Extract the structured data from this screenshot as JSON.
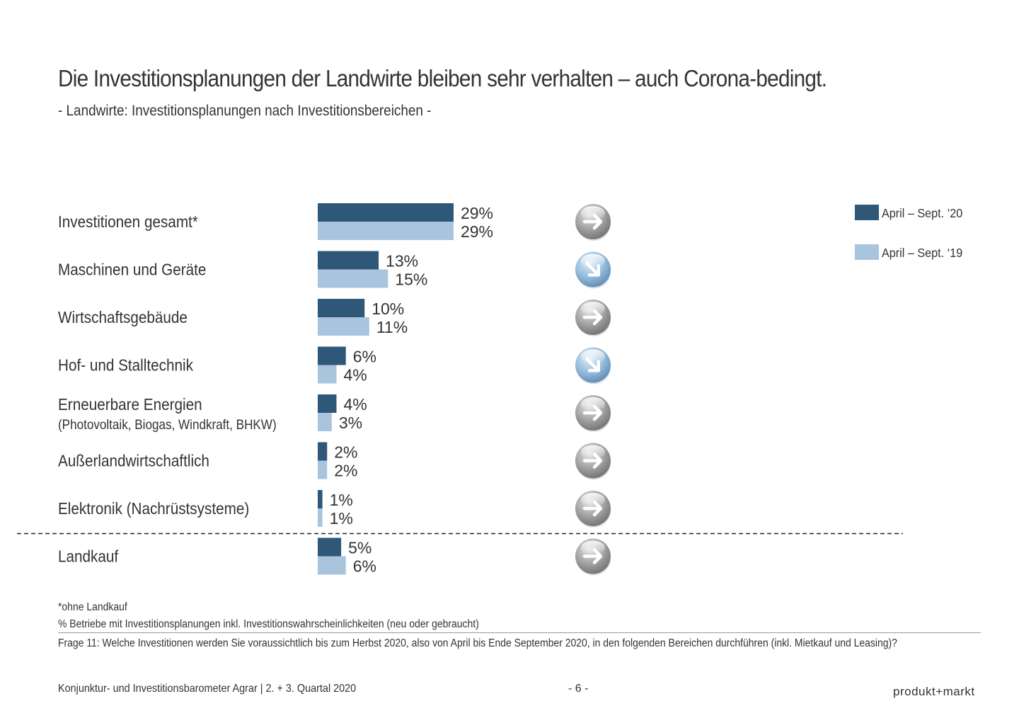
{
  "title": "Die Investitionsplanungen der Landwirte bleiben sehr verhalten – auch Corona-bedingt.",
  "subtitle": "- Landwirte: Investitionsplanungen nach Investitionsbereichen -",
  "colors": {
    "series_2020": "#2f5778",
    "series_2019": "#a9c5dd",
    "arrow_neutral": "#9b9b9b",
    "arrow_down": "#8fb6d8"
  },
  "chart_data": {
    "type": "bar",
    "orientation": "horizontal",
    "categories": [
      "Investitionen gesamt*",
      "Maschinen und Geräte",
      "Wirtschaftsgebäude",
      "Hof- und Stalltechnik",
      "Erneuerbare Energien",
      "Außerlandwirtschaftlich",
      "Elektronik (Nachrüstsysteme)",
      "Landkauf"
    ],
    "category_sublabels": [
      "",
      "",
      "",
      "",
      "(Photovoltaik, Biogas, Windkraft, BHKW)",
      "",
      "",
      ""
    ],
    "series": [
      {
        "name": "April – Sept. ’20",
        "values": [
          29,
          13,
          10,
          6,
          4,
          2,
          1,
          5
        ],
        "labels": [
          "29%",
          "13%",
          "10%",
          "6%",
          "4%",
          "2%",
          "1%",
          "5%"
        ]
      },
      {
        "name": "April – Sept. ‘19",
        "values": [
          29,
          15,
          11,
          4,
          3,
          2,
          1,
          6
        ],
        "labels": [
          "29%",
          "15%",
          "11%",
          "4%",
          "3%",
          "2%",
          "1%",
          "6%"
        ]
      }
    ],
    "trend_icons": [
      "arrow-right-icon",
      "arrow-down-right-icon",
      "arrow-right-icon",
      "arrow-down-right-icon",
      "arrow-right-icon",
      "arrow-right-icon",
      "arrow-right-icon",
      "arrow-right-icon"
    ],
    "separator_before_index": 7,
    "value_unit": "%",
    "legend_position": "top-right"
  },
  "footnotes": {
    "note1": "*ohne Landkauf",
    "note2": "% Betriebe mit Investitionsplanungen inkl. Investitionswahrscheinlichkeiten (neu oder gebraucht)",
    "question": "Frage 11: Welche Investitionen werden Sie voraussichtlich bis zum Herbst 2020, also von April bis Ende September 2020, in den folgenden Bereichen durchführen (inkl. Mietkauf und Leasing)?"
  },
  "footer": {
    "source": "Konjunktur- und Investitionsbarometer Agrar | 2. + 3. Quartal 2020",
    "page": "- 6 -",
    "logo": "produkt+markt"
  }
}
